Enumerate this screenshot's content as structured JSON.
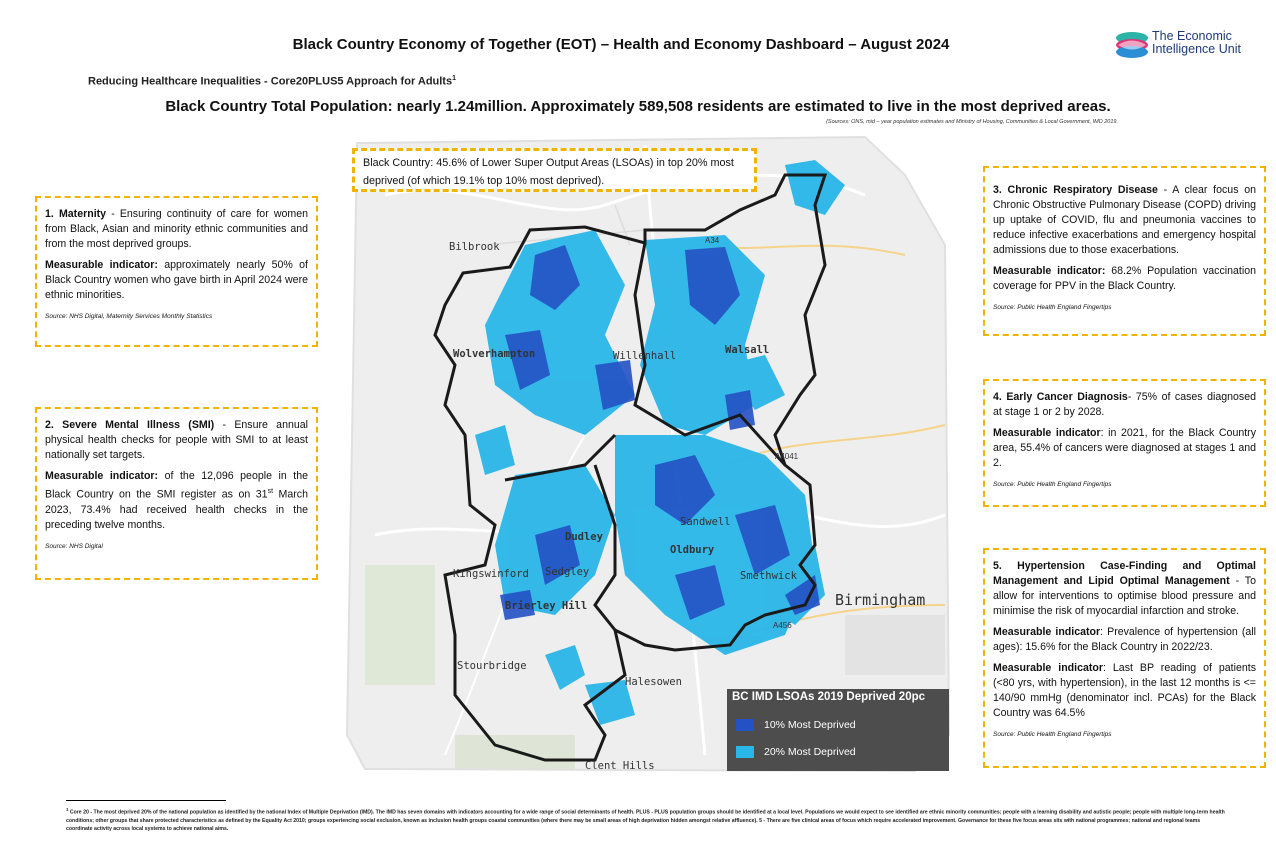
{
  "header": {
    "title": "Black Country Economy of Together (EOT) – Health and Economy Dashboard – August 2024",
    "subtitle": "Reducing Healthcare Inequalities - Core20PLUS5 Approach for Adults",
    "subtitle_sup": "1",
    "logo_line1": "The Economic",
    "logo_line2": "Intelligence Unit",
    "headline": "Black Country Total Population: nearly 1.24million. Approximately 589,508 residents are estimated to live in the most deprived areas.",
    "sources": "(Sources: ONS, mid – year population estimates and Ministry of Housing, Communities & Local Government, IMD 2019."
  },
  "callout": "Black Country: 45.6% of Lower Super Output Areas (LSOAs) in top 20% most deprived (of which 19.1% top 10% most deprived).",
  "maternity": {
    "title": "1. Maternity",
    "text": " - Ensuring continuity of care for women from Black, Asian and minority ethnic communities and from the most deprived groups.",
    "indicator_label": "Measurable indicator:",
    "indicator": " approximately nearly 50% of Black Country women who gave birth in April 2024 were ethnic minorities.",
    "source": "Source: NHS Digital, Maternity Services Monthly Statistics"
  },
  "smi": {
    "title": "2. Severe Mental Illness (SMI)",
    "text": " - Ensure annual physical health checks for people with SMI to at least nationally set targets.",
    "indicator_label": "Measurable indicator:",
    "indicator_a": " of the 12,096 people in the Black Country on the SMI register as on 31",
    "indicator_sup": "st",
    "indicator_b": " March 2023, 73.4% had received health checks in the preceding twelve months.",
    "source": "Source: NHS Digital"
  },
  "copd": {
    "title": "3. Chronic Respiratory Disease",
    "text": " - A clear focus on Chronic Obstructive Pulmonary Disease (COPD) driving up uptake of COVID, flu and pneumonia vaccines to reduce infective exacerbations and emergency hospital admissions due to those exacerbations.",
    "indicator_label": "Measurable indicator:",
    "indicator": " 68.2% Population vaccination coverage for PPV in the Black Country.",
    "source": "Source: Public Health England Fingertips"
  },
  "cancer": {
    "title": "4. Early Cancer Diagnosis",
    "text": "- 75% of cases diagnosed at stage 1 or 2 by 2028.",
    "indicator_label": "Measurable indicator",
    "indicator": ": in 2021, for the Black Country area, 55.4% of cancers were diagnosed at stages 1 and 2.",
    "source": "Source: Public Health England Fingertips"
  },
  "hypertension": {
    "title": "5. Hypertension Case-Finding and Optimal Management and Lipid Optimal Management",
    "text": " - To allow for interventions to optimise blood pressure and minimise the risk of myocardial infarction and stroke.",
    "indicator1_label": "Measurable indicator",
    "indicator1": ": Prevalence of hypertension (all ages): 15.6% for the Black Country in 2022/23.",
    "indicator2_label": "Measurable indicator",
    "indicator2": ": Last BP reading of patients (<80 yrs, with hypertension), in the last 12 months is <= 140/90 mmHg (denominator incl. PCAs) for the Black Country was 64.5%",
    "source": "Source: Public Health England Fingertips"
  },
  "map": {
    "places": [
      "Bilbrook",
      "Wolverhampton",
      "Willenhall",
      "Walsall",
      "Dudley",
      "Sedgley",
      "Kingswinford",
      "Brierley Hill",
      "Oldbury",
      "Sandwell",
      "Smethwick",
      "Birmingham",
      "Stourbridge",
      "Halesowen",
      "Clent Hills"
    ],
    "roads": [
      "A34",
      "A4041",
      "A456"
    ],
    "legend_title": "BC IMD LSOAs 2019 Deprived 20pc",
    "legend_items": [
      {
        "label": "10% Most Deprived",
        "color": "#2452c4"
      },
      {
        "label": "20% Most Deprived",
        "color": "#29b6e8"
      }
    ]
  },
  "footnote": {
    "sup": "1",
    "text": " Core 20 - The most deprived 20% of the national population as identified by the national Index of Multiple Deprivation (IMD). The IMD has seven domains with indicators accounting for a wide range of social determinants of health. PLUS - PLUS population groups should be identified at a local level. Populations we would expect to see identified are ethnic minority communities; people with a learning disability and autistic people; people with multiple long-term health conditions; other groups that share protected characteristics as defined by the Equality Act 2010; groups experiencing social exclusion, known as inclusion health groups coastal communities (where there may be small areas of high deprivation hidden amongst relative affluence). 5 - There are five clinical areas of focus which require accelerated improvement. Governance for these five focus areas sits with national programmes; national and regional teams coordinate activity across local systems to achieve national aims."
  }
}
